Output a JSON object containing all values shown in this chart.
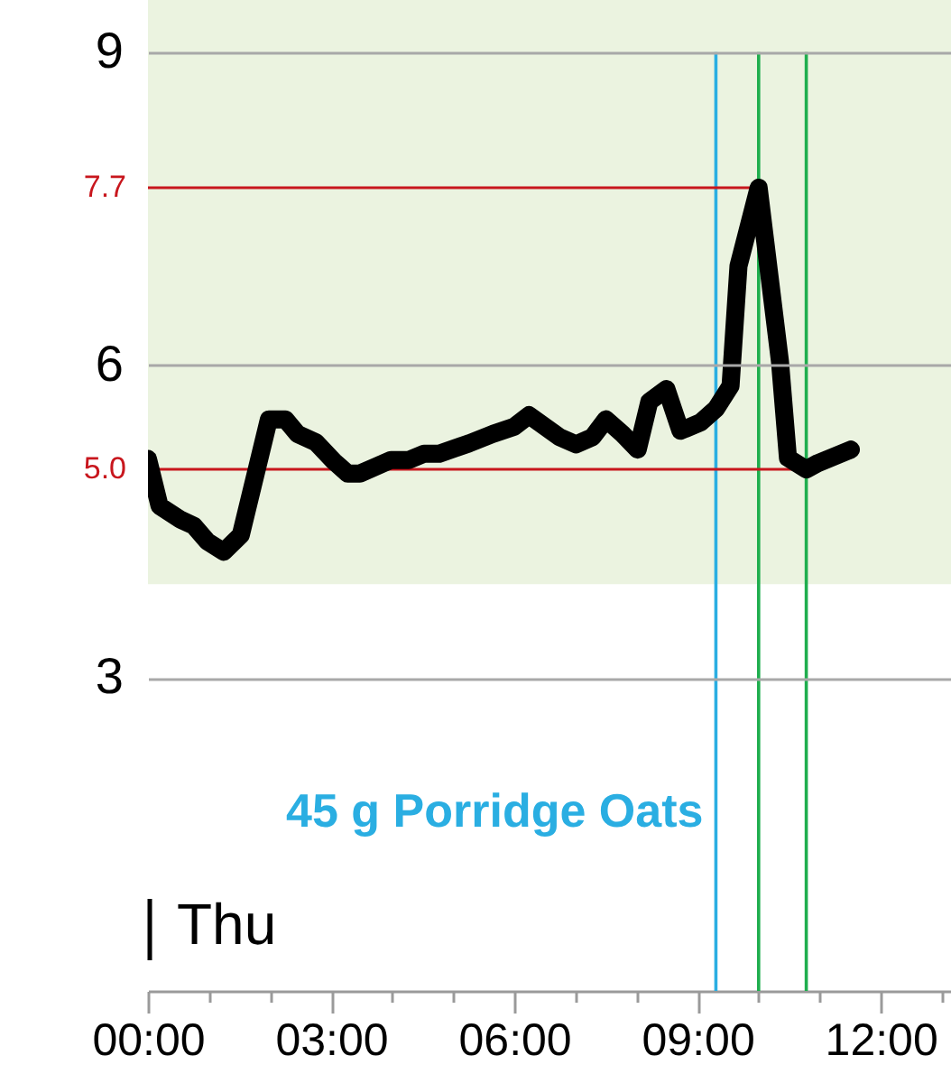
{
  "chart_data": {
    "type": "line",
    "x": [
      0,
      0.19,
      0.53,
      0.75,
      0.97,
      1.24,
      1.52,
      1.98,
      2.25,
      2.45,
      2.75,
      3.04,
      3.27,
      3.47,
      3.98,
      4.27,
      4.52,
      4.77,
      5.26,
      5.65,
      6.0,
      6.24,
      6.74,
      7.01,
      7.28,
      7.5,
      7.77,
      8.02,
      8.21,
      8.49,
      8.72,
      9.05,
      9.3,
      9.54,
      9.67,
      10.0,
      10.35,
      10.48,
      10.78,
      10.97,
      11.51
    ],
    "series": [
      {
        "color": "#000000",
        "values": [
          5.1,
          4.65,
          4.52,
          4.46,
          4.31,
          4.21,
          4.37,
          5.48,
          5.48,
          5.34,
          5.26,
          5.08,
          4.96,
          4.96,
          5.09,
          5.09,
          5.15,
          5.15,
          5.25,
          5.34,
          5.41,
          5.52,
          5.31,
          5.24,
          5.31,
          5.48,
          5.34,
          5.19,
          5.65,
          5.77,
          5.37,
          5.45,
          5.58,
          5.8,
          6.95,
          7.7,
          6.03,
          5.11,
          5.0,
          5.06,
          5.19
        ]
      }
    ],
    "xlim": [
      0,
      13.15
    ],
    "xticks": [
      {
        "value": 0,
        "label": "00:00"
      },
      {
        "value": 1,
        "label": null
      },
      {
        "value": 2,
        "label": null
      },
      {
        "value": 3,
        "label": "03:00"
      },
      {
        "value": 4,
        "label": null
      },
      {
        "value": 5,
        "label": null
      },
      {
        "value": 6,
        "label": "06:00"
      },
      {
        "value": 7,
        "label": null
      },
      {
        "value": 8,
        "label": null
      },
      {
        "value": 9,
        "label": "09:00"
      },
      {
        "value": 10,
        "label": null
      },
      {
        "value": 11,
        "label": null
      },
      {
        "value": 12,
        "label": "12:00"
      },
      {
        "value": 13,
        "label": null
      }
    ],
    "ylim": [
      0,
      9.5
    ],
    "yticks": [
      3,
      6,
      9
    ],
    "grid": "y",
    "line_style": "solid",
    "bands": [
      {
        "axis": "y",
        "from": 3.9,
        "to": 9.5,
        "color": "#ebf3e0"
      }
    ],
    "ref_lines": [
      {
        "axis": "x",
        "value": 9.3,
        "label": "45 g Porridge Oats",
        "color": "#2aaee2"
      },
      {
        "axis": "x",
        "value": 10.0,
        "color": "#1fae4e"
      },
      {
        "axis": "x",
        "value": 10.78,
        "color": "#1fae4e"
      }
    ],
    "annotations": [
      {
        "text": "7.7",
        "x": 10.0,
        "y": 7.7
      },
      {
        "text": "5.0",
        "x": 10.78,
        "y": 5.0
      },
      "Thu"
    ]
  }
}
